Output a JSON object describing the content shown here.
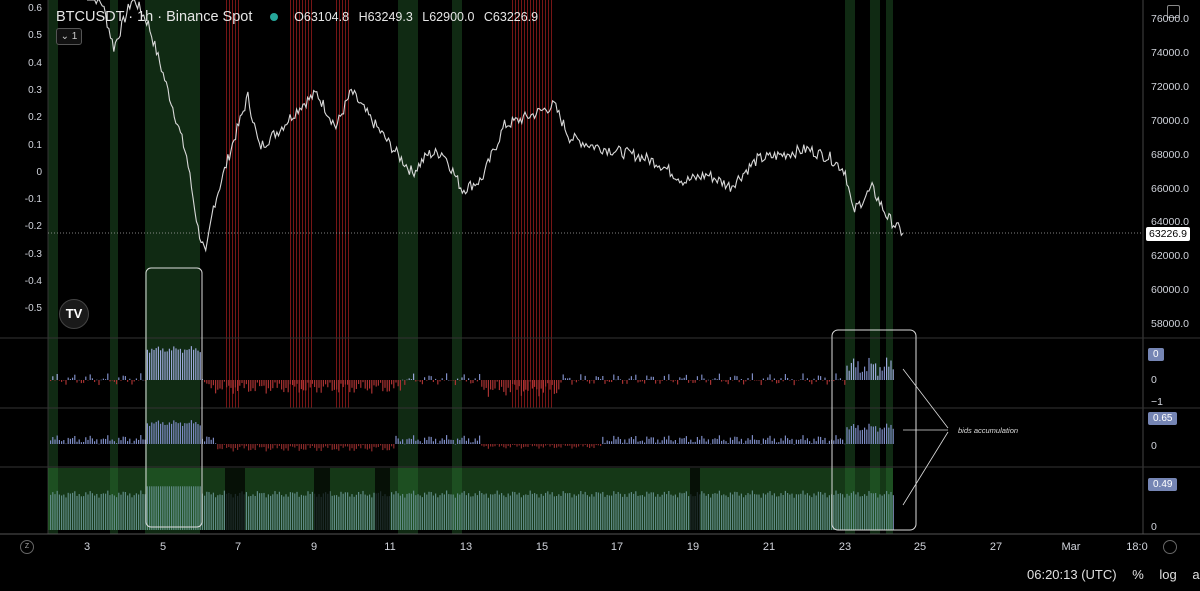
{
  "header": {
    "symbol": "BTCUSDT · 1h · Binance Spot",
    "open": "O63104.8",
    "high": "H63249.3",
    "low": "L62900.0",
    "close": "C63226.9",
    "indicator_toggle": "⌄ 1"
  },
  "logo_text": "TV",
  "left_axis_ticks": [
    "0.6",
    "0.5",
    "0.4",
    "0.3",
    "0.2",
    "0.1",
    "0",
    "-0.1",
    "-0.2",
    "-0.3",
    "-0.4",
    "-0.5"
  ],
  "right_axis_ticks": [
    "76000.0",
    "74000.0",
    "72000.0",
    "70000.0",
    "68000.0",
    "66000.0",
    "64000.0",
    "62000.0",
    "60000.0",
    "58000.0"
  ],
  "last_price": "63226.9",
  "pane_labels": {
    "pane1_value": "0",
    "pane1_zero": "0",
    "pane1_minus": "−1",
    "pane2_value": "0.65",
    "pane2_zero": "0",
    "pane3_value": "0.49",
    "pane3_zero": "0"
  },
  "x_axis_ticks": [
    "3",
    "5",
    "7",
    "9",
    "11",
    "13",
    "15",
    "17",
    "19",
    "21",
    "23",
    "25",
    "27",
    "Mar",
    "18:0"
  ],
  "annotation": "bids accumulation",
  "bottom_bar": {
    "time": "06:20:13 (UTC)",
    "percent": "%",
    "log": "log",
    "auto": "auto"
  },
  "corner_left": "Z",
  "colors": {
    "accent_green": "#2e7d32",
    "bear_red": "#b71c1c",
    "bars_blue": "#8c9ccf",
    "price_line": "#d9d9d9"
  },
  "chart_data": {
    "type": "line",
    "title": "BTCUSDT · 1h · Binance Spot",
    "x": [
      "3",
      "5",
      "7",
      "9",
      "11",
      "13",
      "15",
      "17",
      "19",
      "21",
      "23",
      "25"
    ],
    "series": [
      {
        "name": "BTCUSDT",
        "values": [
          77500,
          74000,
          70500,
          71200,
          68500,
          66500,
          69800,
          67800,
          67000,
          68200,
          66800,
          63226.9
        ]
      }
    ],
    "ylim": [
      57000,
      77000
    ],
    "price_scale_ticks": [
      58000,
      60000,
      62000,
      64000,
      66000,
      68000,
      70000,
      72000,
      74000,
      76000
    ],
    "indicator_scale": [
      -0.5,
      0.6
    ]
  }
}
